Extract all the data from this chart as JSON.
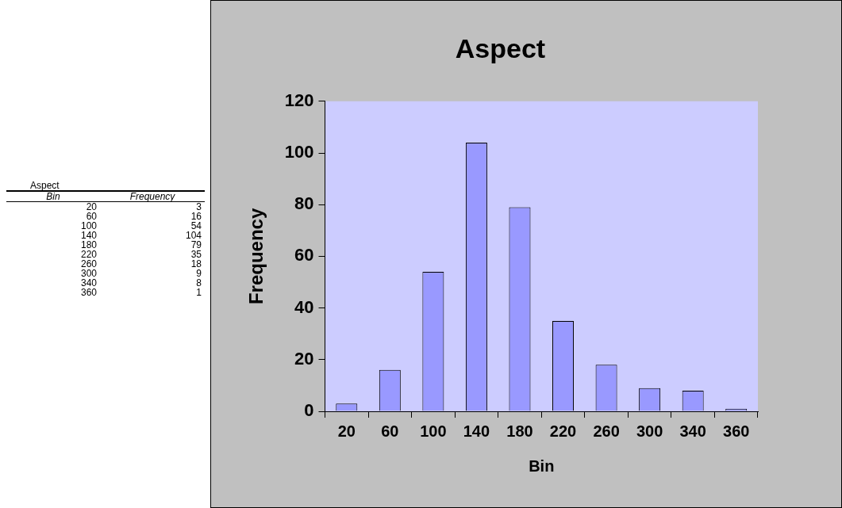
{
  "chart_data": [
    {
      "type": "other",
      "title": "Aspect",
      "xlabel": "Bin",
      "ylabel": "Frequency",
      "categories": [
        "20",
        "60",
        "100",
        "140",
        "180",
        "220",
        "260",
        "300",
        "340",
        "360"
      ],
      "values": [
        3,
        16,
        54,
        104,
        79,
        35,
        18,
        9,
        8,
        1
      ],
      "value_labels": [
        "3",
        "16",
        "54",
        "104",
        "79",
        "35",
        "18",
        "9",
        "8",
        "1"
      ]
    },
    {
      "type": "bar",
      "title": "Aspect",
      "xlabel": "Bin",
      "ylabel": "Frequency",
      "categories": [
        "20",
        "60",
        "100",
        "140",
        "180",
        "220",
        "260",
        "300",
        "340",
        "360"
      ],
      "values": [
        3,
        16,
        54,
        104,
        79,
        35,
        18,
        9,
        8,
        1
      ],
      "color": "#9999ff",
      "ylim": [
        0,
        120
      ],
      "yticks": [
        0,
        20,
        40,
        60,
        80,
        100,
        120
      ],
      "grid": false,
      "legend": false
    }
  ]
}
